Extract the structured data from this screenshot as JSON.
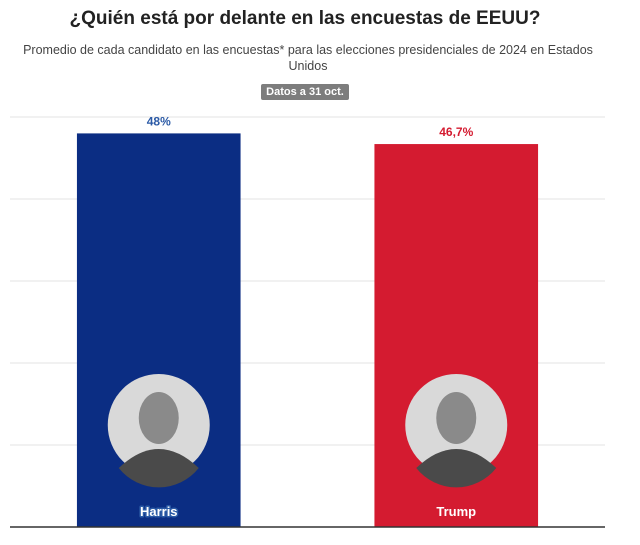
{
  "chart_data": {
    "type": "bar",
    "title": "¿Quién está por delante en las encuestas de EEUU?",
    "subtitle": "Promedio de cada candidato en las encuestas* para las elecciones presidenciales de 2024 en Estados Unidos",
    "note": "Datos a 31 oct.",
    "categories": [
      "Harris",
      "Trump"
    ],
    "values": [
      48,
      46.7
    ],
    "value_labels": [
      "48%",
      "46,7%"
    ],
    "colors": [
      "#0b2d83",
      "#d41b30"
    ],
    "label_colors": [
      "#2b5aa6",
      "#d41b30"
    ],
    "ylim": [
      0,
      50
    ],
    "yticks": [
      0,
      10,
      20,
      30,
      40,
      50
    ],
    "grid": true
  }
}
